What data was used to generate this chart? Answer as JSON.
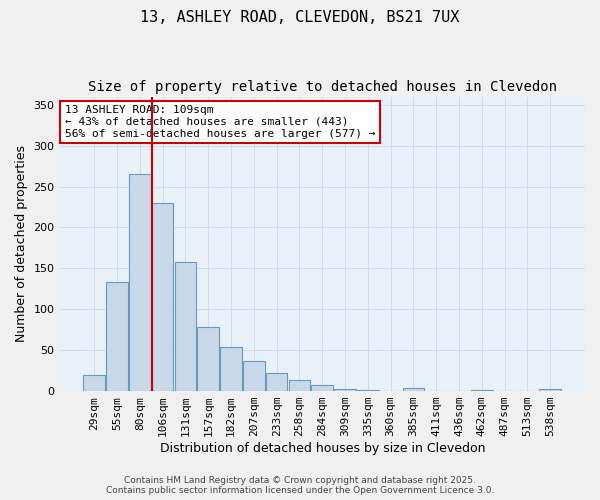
{
  "title_line1": "13, ASHLEY ROAD, CLEVEDON, BS21 7UX",
  "title_line2": "Size of property relative to detached houses in Clevedon",
  "xlabel": "Distribution of detached houses by size in Clevedon",
  "ylabel": "Number of detached properties",
  "categories": [
    "29sqm",
    "55sqm",
    "80sqm",
    "106sqm",
    "131sqm",
    "157sqm",
    "182sqm",
    "207sqm",
    "233sqm",
    "258sqm",
    "284sqm",
    "309sqm",
    "335sqm",
    "360sqm",
    "385sqm",
    "411sqm",
    "436sqm",
    "462sqm",
    "487sqm",
    "513sqm",
    "538sqm"
  ],
  "values": [
    20,
    133,
    265,
    230,
    158,
    78,
    54,
    37,
    22,
    14,
    8,
    3,
    1,
    0,
    4,
    0,
    0,
    1,
    0,
    0,
    2
  ],
  "bar_color": "#c8d8e8",
  "bar_edge_color": "#6699bb",
  "vline_x_index": 3,
  "vline_color": "#cc0000",
  "ylim": [
    0,
    360
  ],
  "yticks": [
    0,
    50,
    100,
    150,
    200,
    250,
    300,
    350
  ],
  "annotation_text": "13 ASHLEY ROAD: 109sqm\n← 43% of detached houses are smaller (443)\n56% of semi-detached houses are larger (577) →",
  "annotation_box_color": "#ffffff",
  "annotation_box_edge": "#cc0000",
  "grid_color": "#ccddee",
  "bg_color": "#e8f0f8",
  "fig_bg_color": "#f0f0f0",
  "title_fontsize": 11,
  "subtitle_fontsize": 10,
  "axis_label_fontsize": 9,
  "tick_fontsize": 8,
  "annotation_fontsize": 8
}
